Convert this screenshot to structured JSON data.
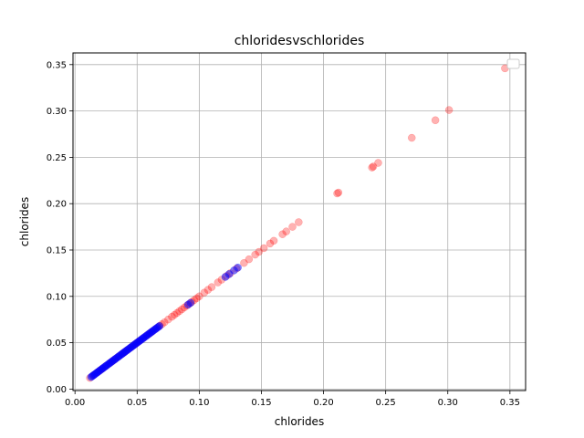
{
  "chart_data": {
    "type": "scatter",
    "title": "chloridesvschlorides",
    "xlabel": "chlorides",
    "ylabel": "chlorides",
    "xlim": [
      -0.0016,
      0.3626
    ],
    "ylim": [
      -0.0016,
      0.3626
    ],
    "xticks": [
      0.0,
      0.05,
      0.1,
      0.15,
      0.2,
      0.25,
      0.3,
      0.35
    ],
    "xtick_labels": [
      "0.00",
      "0.05",
      "0.10",
      "0.15",
      "0.20",
      "0.25",
      "0.30",
      "0.35"
    ],
    "yticks": [
      0.0,
      0.05,
      0.1,
      0.15,
      0.2,
      0.25,
      0.3,
      0.35
    ],
    "ytick_labels": [
      "0.00",
      "0.05",
      "0.10",
      "0.15",
      "0.20",
      "0.25",
      "0.30",
      "0.35"
    ],
    "grid": true,
    "legend": "top-right",
    "series": [
      {
        "color": "#ff0000",
        "opacity": 0.3,
        "values": [
          0.012,
          0.015,
          0.018,
          0.02,
          0.022,
          0.025,
          0.028,
          0.03,
          0.032,
          0.035,
          0.038,
          0.04,
          0.042,
          0.045,
          0.048,
          0.05,
          0.052,
          0.055,
          0.058,
          0.06,
          0.062,
          0.065,
          0.068,
          0.07,
          0.072,
          0.075,
          0.078,
          0.08,
          0.082,
          0.084,
          0.086,
          0.088,
          0.09,
          0.092,
          0.094,
          0.096,
          0.098,
          0.1,
          0.104,
          0.107,
          0.11,
          0.115,
          0.118,
          0.122,
          0.125,
          0.13,
          0.136,
          0.14,
          0.145,
          0.148,
          0.152,
          0.157,
          0.16,
          0.167,
          0.17,
          0.175,
          0.18,
          0.211,
          0.212,
          0.239,
          0.24,
          0.244,
          0.271,
          0.29,
          0.301,
          0.346
        ]
      },
      {
        "color": "#0000ff",
        "opacity": 0.5,
        "values": [
          0.013,
          0.014,
          0.015,
          0.016,
          0.017,
          0.018,
          0.019,
          0.02,
          0.021,
          0.022,
          0.023,
          0.024,
          0.025,
          0.026,
          0.027,
          0.028,
          0.029,
          0.03,
          0.031,
          0.032,
          0.033,
          0.034,
          0.035,
          0.036,
          0.037,
          0.038,
          0.039,
          0.04,
          0.041,
          0.042,
          0.043,
          0.044,
          0.045,
          0.046,
          0.047,
          0.048,
          0.049,
          0.05,
          0.051,
          0.052,
          0.053,
          0.054,
          0.055,
          0.056,
          0.057,
          0.058,
          0.059,
          0.06,
          0.061,
          0.062,
          0.063,
          0.064,
          0.065,
          0.066,
          0.067,
          0.068,
          0.091,
          0.093,
          0.121,
          0.124,
          0.128,
          0.131
        ]
      }
    ]
  }
}
